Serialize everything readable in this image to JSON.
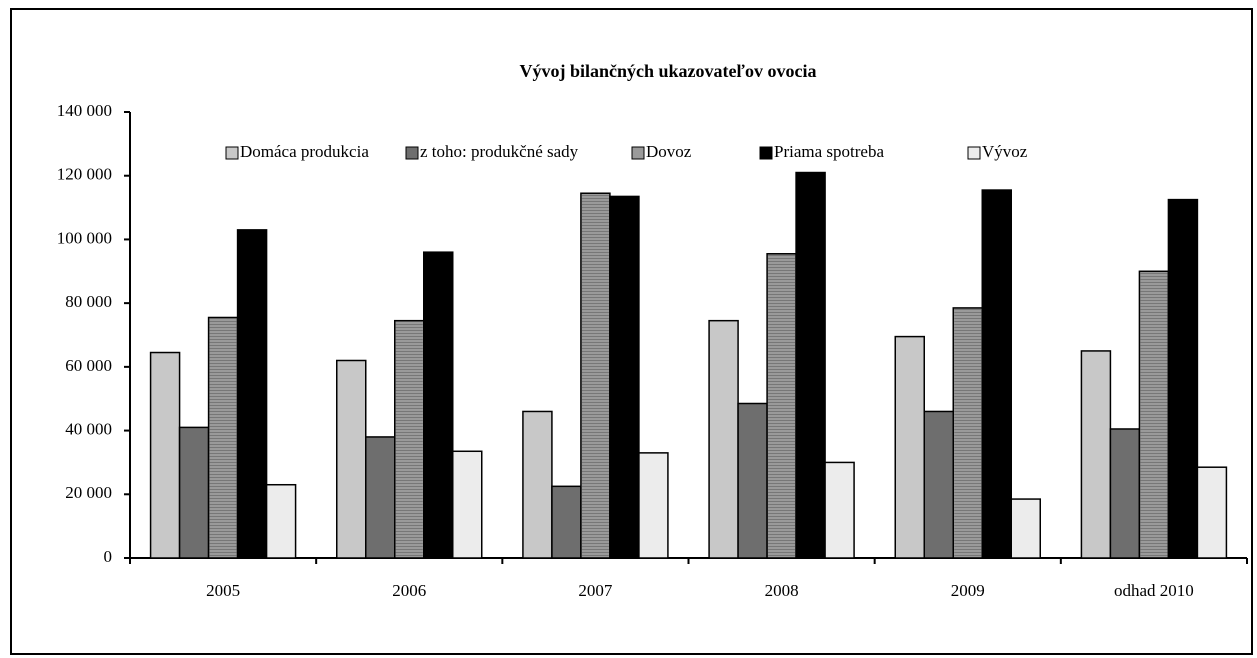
{
  "chart_data": {
    "type": "bar",
    "title": "Vývoj bilančných ukazovateľov ovocia",
    "categories": [
      "2005",
      "2006",
      "2007",
      "2008",
      "2009",
      "odhad 2010"
    ],
    "series": [
      {
        "name": "Domáca produkcia",
        "color": "#c8c8c8",
        "values": [
          64500,
          62000,
          46000,
          74500,
          69500,
          65000
        ]
      },
      {
        "name": "z toho: produkčné sady",
        "color": "#6e6e6e",
        "values": [
          41000,
          38000,
          22500,
          48500,
          46000,
          40500
        ]
      },
      {
        "name": "Dovoz",
        "color": "#9a9a9a",
        "values": [
          75500,
          74500,
          114500,
          95500,
          78500,
          90000
        ]
      },
      {
        "name": "Priama spotreba",
        "color": "#000000",
        "values": [
          103000,
          96000,
          113500,
          121000,
          115500,
          112500
        ]
      },
      {
        "name": "Vývoz",
        "color": "#ececec",
        "values": [
          23000,
          33500,
          33000,
          30000,
          18500,
          28500
        ]
      }
    ],
    "ylim": [
      0,
      140000
    ],
    "yticks": [
      0,
      {
        "value": 20000,
        "label": "20 000"
      },
      {
        "value": 40000,
        "label": "40 000"
      },
      {
        "value": 60000,
        "label": "60 000"
      },
      {
        "value": 80000,
        "label": "80 000"
      },
      {
        "value": 100000,
        "label": "100 000"
      },
      {
        "value": 120000,
        "label": "120 000"
      },
      {
        "value": 140000,
        "label": "140 000"
      }
    ],
    "legend": "top",
    "grid": false
  }
}
